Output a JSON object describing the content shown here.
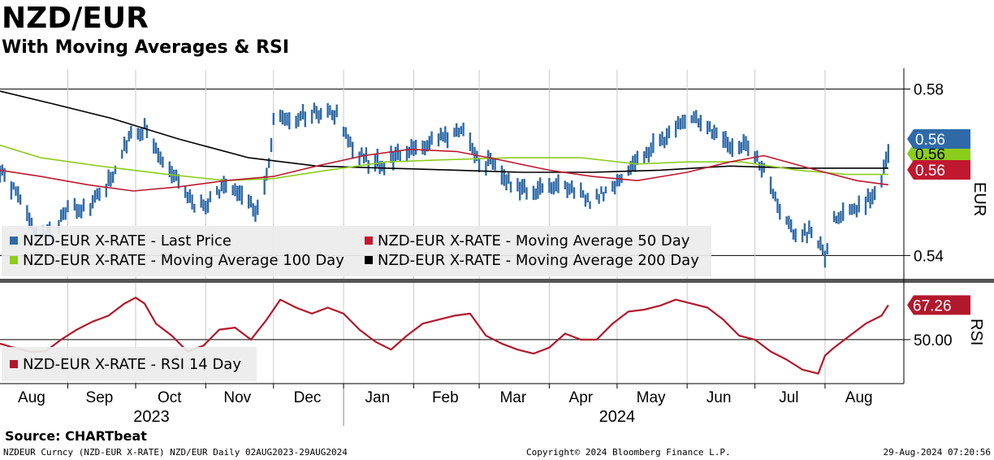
{
  "header": {
    "title": "NZD/EUR",
    "subtitle": "With Moving Averages & RSI"
  },
  "footer": {
    "source": "Source: CHARTbeat",
    "left": "NZDEUR Curncy (NZD-EUR X-RATE) NZD/EUR  Daily 02AUG2023-29AUG2024",
    "center": "Copyright© 2024 Bloomberg Finance L.P.",
    "right": "29-Aug-2024 07:20:56"
  },
  "colors": {
    "price": "#2f6aa8",
    "ma50": "#c0182f",
    "ma100": "#8ccc1c",
    "ma200": "#000000",
    "rsi": "#b2182b"
  },
  "chart_data": [
    {
      "type": "line",
      "panel": "price",
      "y_axis_label": "EUR",
      "ylim": [
        0.535,
        0.585
      ],
      "yticks": [
        "0.58",
        "0.54"
      ],
      "x_start": "2023-08-02",
      "x_end": "2024-08-29",
      "legend": [
        "NZD-EUR X-RATE - Last Price",
        "NZD-EUR X-RATE - Moving Average 50 Day",
        "NZD-EUR X-RATE - Moving Average 100 Day",
        "NZD-EUR X-RATE - Moving Average 200 Day"
      ],
      "last_value_labels": {
        "last_price": "0.56",
        "ma100": "0.56",
        "ma50": "0.56"
      },
      "series": [
        {
          "name": "NZD-EUR X-RATE - Last Price",
          "points": [
            [
              "2023-08-02",
              0.5605
            ],
            [
              "2023-08-10",
              0.554
            ],
            [
              "2023-08-18",
              0.5455
            ],
            [
              "2023-08-25",
              0.545
            ],
            [
              "2023-09-01",
              0.5515
            ],
            [
              "2023-09-08",
              0.551
            ],
            [
              "2023-09-15",
              0.5545
            ],
            [
              "2023-09-22",
              0.5605
            ],
            [
              "2023-09-29",
              0.569
            ],
            [
              "2023-10-05",
              0.571
            ],
            [
              "2023-10-12",
              0.5635
            ],
            [
              "2023-10-19",
              0.559
            ],
            [
              "2023-10-26",
              0.552
            ],
            [
              "2023-11-02",
              0.5525
            ],
            [
              "2023-11-09",
              0.557
            ],
            [
              "2023-11-16",
              0.556
            ],
            [
              "2023-11-23",
              0.5505
            ],
            [
              "2023-11-28",
              0.558
            ],
            [
              "2023-12-01",
              0.572
            ],
            [
              "2023-12-08",
              0.5725
            ],
            [
              "2023-12-15",
              0.5735
            ],
            [
              "2023-12-22",
              0.5745
            ],
            [
              "2023-12-29",
              0.5735
            ],
            [
              "2024-01-05",
              0.566
            ],
            [
              "2024-01-12",
              0.563
            ],
            [
              "2024-01-19",
              0.562
            ],
            [
              "2024-01-26",
              0.5645
            ],
            [
              "2024-02-02",
              0.565
            ],
            [
              "2024-02-09",
              0.567
            ],
            [
              "2024-02-16",
              0.569
            ],
            [
              "2024-02-23",
              0.57
            ],
            [
              "2024-03-01",
              0.563
            ],
            [
              "2024-03-08",
              0.562
            ],
            [
              "2024-03-15",
              0.557
            ],
            [
              "2024-03-22",
              0.555
            ],
            [
              "2024-03-29",
              0.556
            ],
            [
              "2024-04-05",
              0.5565
            ],
            [
              "2024-04-12",
              0.556
            ],
            [
              "2024-04-19",
              0.5525
            ],
            [
              "2024-04-26",
              0.5555
            ],
            [
              "2024-05-03",
              0.5595
            ],
            [
              "2024-05-10",
              0.564
            ],
            [
              "2024-05-17",
              0.566
            ],
            [
              "2024-05-24",
              0.569
            ],
            [
              "2024-05-31",
              0.5725
            ],
            [
              "2024-06-07",
              0.572
            ],
            [
              "2024-06-14",
              0.5695
            ],
            [
              "2024-06-21",
              0.5665
            ],
            [
              "2024-06-28",
              0.566
            ],
            [
              "2024-07-05",
              0.56
            ],
            [
              "2024-07-12",
              0.551
            ],
            [
              "2024-07-19",
              0.545
            ],
            [
              "2024-07-26",
              0.546
            ],
            [
              "2024-08-01",
              0.54
            ],
            [
              "2024-08-05",
              0.549
            ],
            [
              "2024-08-12",
              0.551
            ],
            [
              "2024-08-19",
              0.553
            ],
            [
              "2024-08-26",
              0.558
            ],
            [
              "2024-08-29",
              0.5645
            ]
          ]
        },
        {
          "name": "NZD-EUR X-RATE - Moving Average 50 Day",
          "points": [
            [
              "2023-08-02",
              0.5605
            ],
            [
              "2023-08-20",
              0.559
            ],
            [
              "2023-09-10",
              0.557
            ],
            [
              "2023-09-30",
              0.5555
            ],
            [
              "2023-10-20",
              0.5565
            ],
            [
              "2023-11-10",
              0.558
            ],
            [
              "2023-12-01",
              0.559
            ],
            [
              "2023-12-20",
              0.5615
            ],
            [
              "2024-01-10",
              0.564
            ],
            [
              "2024-01-30",
              0.5655
            ],
            [
              "2024-02-20",
              0.565
            ],
            [
              "2024-03-10",
              0.563
            ],
            [
              "2024-04-01",
              0.5605
            ],
            [
              "2024-04-20",
              0.559
            ],
            [
              "2024-05-10",
              0.558
            ],
            [
              "2024-06-01",
              0.56
            ],
            [
              "2024-06-20",
              0.5625
            ],
            [
              "2024-07-05",
              0.564
            ],
            [
              "2024-07-25",
              0.561
            ],
            [
              "2024-08-15",
              0.558
            ],
            [
              "2024-08-29",
              0.557
            ]
          ]
        },
        {
          "name": "NZD-EUR X-RATE - Moving Average 100 Day",
          "points": [
            [
              "2023-08-02",
              0.5665
            ],
            [
              "2023-08-20",
              0.5635
            ],
            [
              "2023-09-15",
              0.5615
            ],
            [
              "2023-10-15",
              0.5595
            ],
            [
              "2023-11-10",
              0.558
            ],
            [
              "2023-12-01",
              0.5585
            ],
            [
              "2023-12-25",
              0.5605
            ],
            [
              "2024-01-20",
              0.5625
            ],
            [
              "2024-02-15",
              0.563
            ],
            [
              "2024-03-15",
              0.5635
            ],
            [
              "2024-04-15",
              0.5635
            ],
            [
              "2024-05-10",
              0.562
            ],
            [
              "2024-06-01",
              0.5625
            ],
            [
              "2024-06-25",
              0.5625
            ],
            [
              "2024-07-20",
              0.5605
            ],
            [
              "2024-08-10",
              0.5595
            ],
            [
              "2024-08-29",
              0.5595
            ]
          ]
        },
        {
          "name": "NZD-EUR X-RATE - Moving Average 200 Day",
          "points": [
            [
              "2023-08-02",
              0.5795
            ],
            [
              "2023-08-25",
              0.5765
            ],
            [
              "2023-09-20",
              0.573
            ],
            [
              "2023-10-20",
              0.568
            ],
            [
              "2023-11-20",
              0.5635
            ],
            [
              "2023-12-20",
              0.5615
            ],
            [
              "2024-01-20",
              0.561
            ],
            [
              "2024-02-20",
              0.5605
            ],
            [
              "2024-03-20",
              0.56
            ],
            [
              "2024-04-20",
              0.56
            ],
            [
              "2024-05-20",
              0.5605
            ],
            [
              "2024-06-20",
              0.5615
            ],
            [
              "2024-07-20",
              0.561
            ],
            [
              "2024-08-29",
              0.561
            ]
          ]
        }
      ]
    },
    {
      "type": "line",
      "panel": "rsi",
      "y_axis_label": "RSI",
      "yticks": [
        "50.00"
      ],
      "ylim": [
        28,
        78
      ],
      "legend": [
        "NZD-EUR X-RATE - RSI 14 Day"
      ],
      "last_value_label": "67.26",
      "series": [
        {
          "name": "NZD-EUR X-RATE - RSI 14 Day",
          "points": [
            [
              "2023-08-02",
              48
            ],
            [
              "2023-08-08",
              46
            ],
            [
              "2023-08-15",
              44
            ],
            [
              "2023-08-22",
              44
            ],
            [
              "2023-08-29",
              50
            ],
            [
              "2023-09-05",
              55
            ],
            [
              "2023-09-12",
              59
            ],
            [
              "2023-09-19",
              62
            ],
            [
              "2023-09-26",
              68
            ],
            [
              "2023-10-01",
              71
            ],
            [
              "2023-10-05",
              68
            ],
            [
              "2023-10-10",
              58
            ],
            [
              "2023-10-17",
              52
            ],
            [
              "2023-10-24",
              44
            ],
            [
              "2023-10-31",
              47
            ],
            [
              "2023-11-07",
              55
            ],
            [
              "2023-11-14",
              56
            ],
            [
              "2023-11-21",
              50
            ],
            [
              "2023-11-28",
              60
            ],
            [
              "2023-12-04",
              70
            ],
            [
              "2023-12-11",
              66
            ],
            [
              "2023-12-18",
              63
            ],
            [
              "2023-12-25",
              66
            ],
            [
              "2024-01-01",
              63
            ],
            [
              "2024-01-08",
              55
            ],
            [
              "2024-01-15",
              49
            ],
            [
              "2024-01-22",
              45
            ],
            [
              "2024-01-29",
              52
            ],
            [
              "2024-02-05",
              58
            ],
            [
              "2024-02-12",
              60
            ],
            [
              "2024-02-19",
              62
            ],
            [
              "2024-02-26",
              63
            ],
            [
              "2024-03-04",
              52
            ],
            [
              "2024-03-11",
              48
            ],
            [
              "2024-03-18",
              45
            ],
            [
              "2024-03-25",
              43
            ],
            [
              "2024-04-01",
              46
            ],
            [
              "2024-04-08",
              53
            ],
            [
              "2024-04-15",
              50
            ],
            [
              "2024-04-22",
              50
            ],
            [
              "2024-04-29",
              58
            ],
            [
              "2024-05-06",
              64
            ],
            [
              "2024-05-13",
              65
            ],
            [
              "2024-05-20",
              67
            ],
            [
              "2024-05-27",
              70
            ],
            [
              "2024-06-03",
              68
            ],
            [
              "2024-06-10",
              66
            ],
            [
              "2024-06-17",
              60
            ],
            [
              "2024-06-24",
              52
            ],
            [
              "2024-07-01",
              50
            ],
            [
              "2024-07-08",
              44
            ],
            [
              "2024-07-15",
              40
            ],
            [
              "2024-07-22",
              35
            ],
            [
              "2024-07-29",
              33
            ],
            [
              "2024-08-01",
              42
            ],
            [
              "2024-08-05",
              46
            ],
            [
              "2024-08-12",
              52
            ],
            [
              "2024-08-19",
              58
            ],
            [
              "2024-08-26",
              62
            ],
            [
              "2024-08-29",
              67.26
            ]
          ]
        }
      ]
    }
  ],
  "x_axis": {
    "months": [
      "Aug",
      "Sep",
      "Oct",
      "Nov",
      "Dec",
      "Jan",
      "Feb",
      "Mar",
      "Apr",
      "May",
      "Jun",
      "Jul",
      "Aug"
    ],
    "years": [
      "2023",
      "2024"
    ]
  }
}
